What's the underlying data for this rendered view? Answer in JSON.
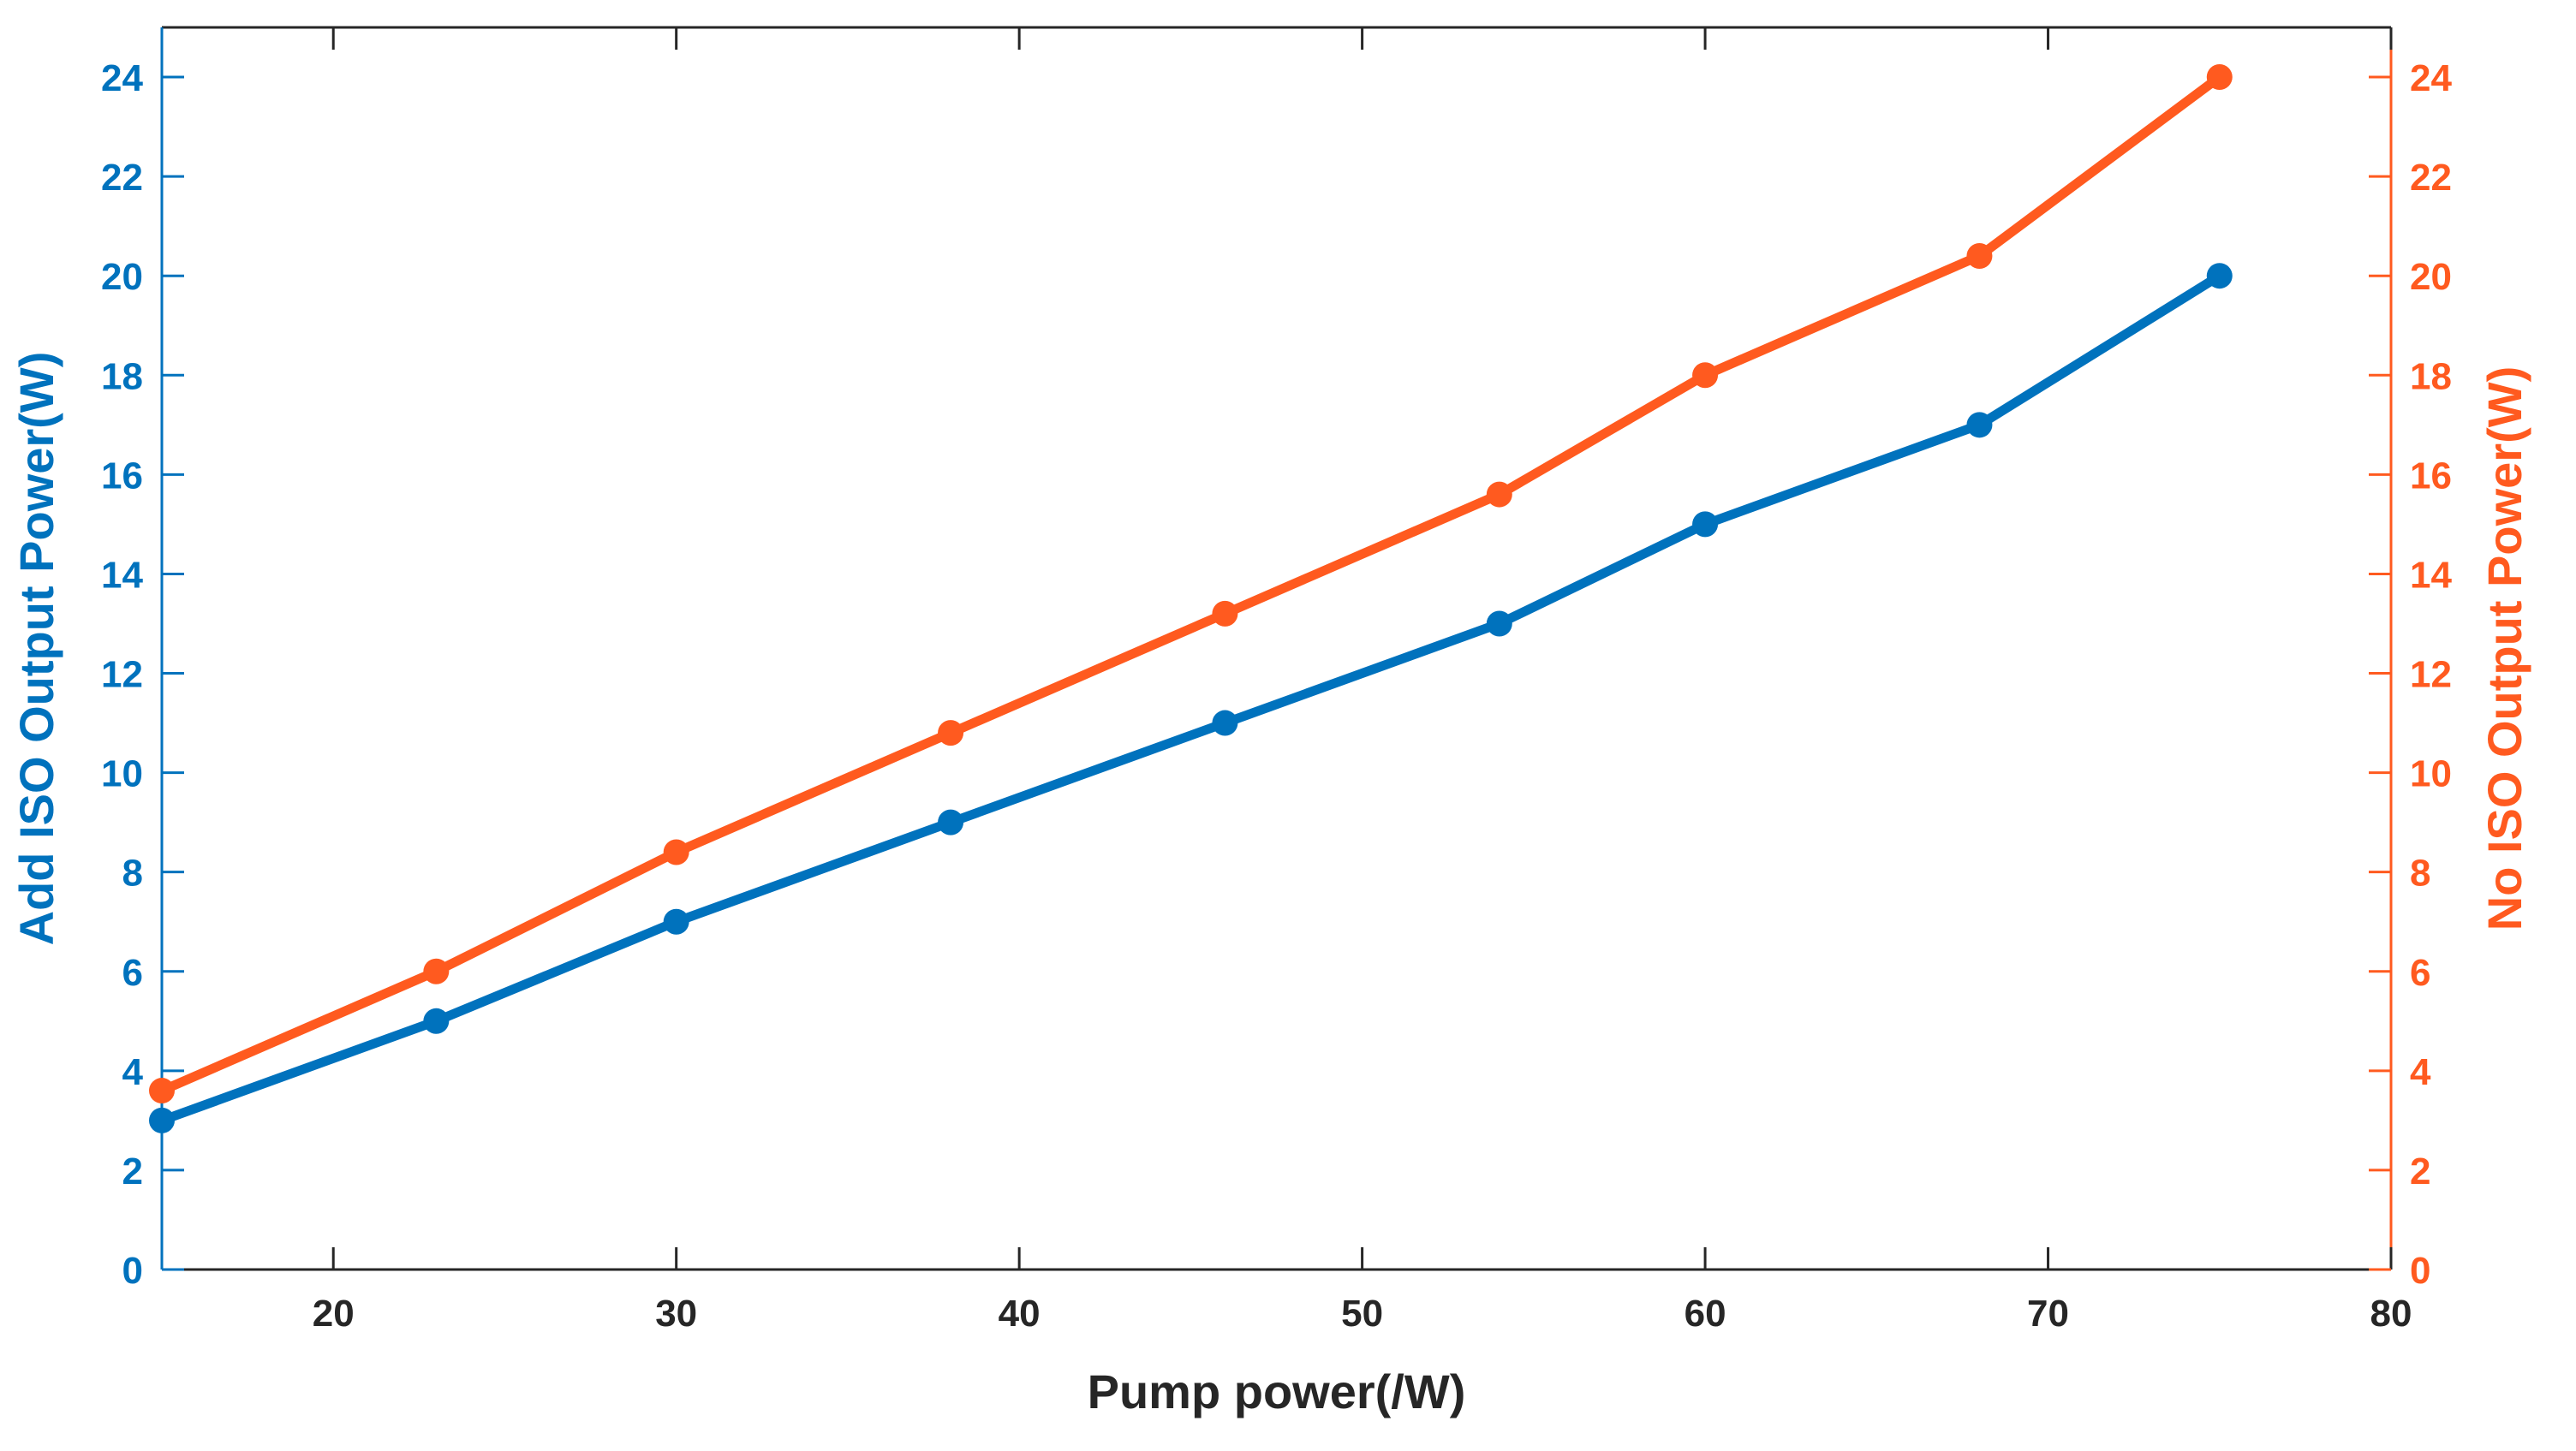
{
  "chart_data": {
    "type": "line",
    "title": "",
    "xlabel": "Pump power(/W)",
    "ylabel_left": "Add ISO Output Power(W)",
    "ylabel_right": "No ISO Output Power(W)",
    "xlim": [
      15,
      80
    ],
    "ylim_left": [
      0,
      25
    ],
    "ylim_right": [
      0,
      25
    ],
    "xticks": [
      20,
      30,
      40,
      50,
      60,
      70,
      80
    ],
    "yticks_left": [
      0,
      2,
      4,
      6,
      8,
      10,
      12,
      14,
      16,
      18,
      20,
      22,
      24
    ],
    "yticks_right": [
      0,
      2,
      4,
      6,
      8,
      10,
      12,
      14,
      16,
      18,
      20,
      22,
      24
    ],
    "grid": false,
    "x": [
      15,
      23,
      30,
      38,
      46,
      54,
      60,
      68,
      75
    ],
    "series": [
      {
        "name": "Add ISO Output Power",
        "axis": "left",
        "color": "#0072BD",
        "values": [
          3,
          5,
          7,
          9,
          11,
          13,
          15,
          17,
          20
        ]
      },
      {
        "name": "No ISO Output Power",
        "axis": "right",
        "color": "#FF5A1F",
        "values": [
          3.6,
          6.0,
          8.4,
          10.8,
          13.2,
          15.6,
          18.0,
          20.4,
          24.0
        ]
      }
    ],
    "colors": {
      "axis": "#262626",
      "left_axis": "#0072BD",
      "right_axis": "#FF5A1F"
    }
  }
}
